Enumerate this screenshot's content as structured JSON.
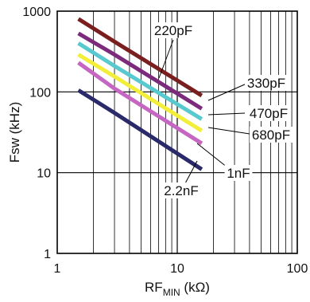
{
  "chart_data": {
    "type": "line",
    "x_scale": "log",
    "y_scale": "log",
    "xlim": [
      1,
      100
    ],
    "ylim": [
      1,
      1000
    ],
    "grid": true,
    "xlabel_main": "RF",
    "xlabel_sub": "MIN",
    "xlabel_unit": " (kΩ)",
    "ylabel": "Fsw (kHz)",
    "x_ticks": [
      "1",
      "10",
      "100"
    ],
    "y_ticks": [
      "1",
      "10",
      "100",
      "1000"
    ],
    "series": [
      {
        "name": "220pF",
        "color": "#7a1f1f",
        "x": [
          1.5,
          3,
          16
        ],
        "y": [
          800,
          420,
          90
        ]
      },
      {
        "name": "330pF",
        "color": "#7c2a7c",
        "x": [
          1.5,
          3,
          16
        ],
        "y": [
          530,
          290,
          62
        ]
      },
      {
        "name": "470pF",
        "color": "#57c9cf",
        "x": [
          1.5,
          3,
          16
        ],
        "y": [
          400,
          210,
          46
        ]
      },
      {
        "name": "680pF",
        "color": "#f2ee3a",
        "x": [
          1.5,
          3,
          16
        ],
        "y": [
          290,
          155,
          33
        ]
      },
      {
        "name": "1nF",
        "color": "#c566c2",
        "x": [
          1.5,
          3,
          16
        ],
        "y": [
          230,
          110,
          23
        ]
      },
      {
        "name": "2.2nF",
        "color": "#2a2a6a",
        "x": [
          1.5,
          3,
          16
        ],
        "y": [
          105,
          55,
          11
        ]
      }
    ]
  }
}
